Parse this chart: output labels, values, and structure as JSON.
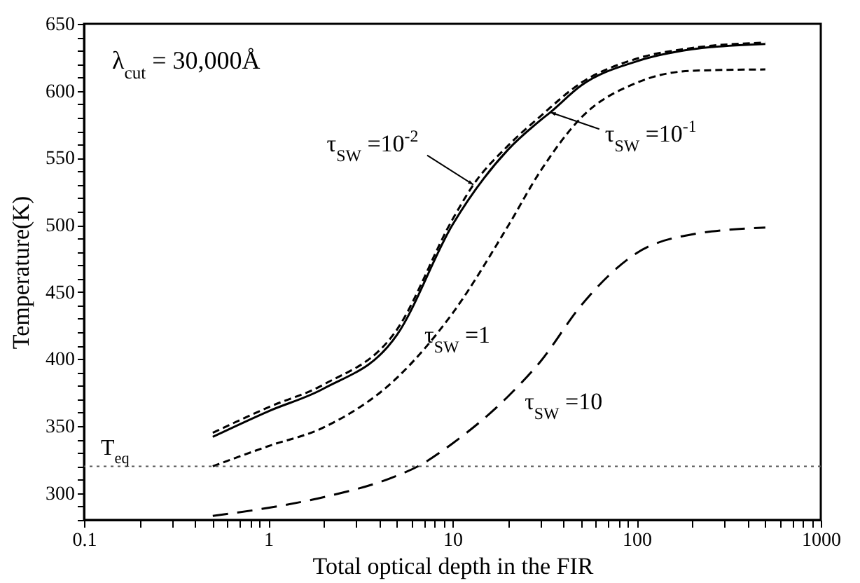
{
  "chart_data": {
    "type": "line",
    "xlabel": "Total optical depth in the FIR",
    "ylabel": "Temperature(K)",
    "log": "x",
    "grid": false,
    "marker": "none",
    "xlim": [
      0.1,
      1000
    ],
    "ylim": [
      280,
      650
    ],
    "xticks": [
      0.1,
      {
        "value": 0.2,
        "label": null
      },
      {
        "value": 0.3,
        "label": null
      },
      {
        "value": 0.4,
        "label": null
      },
      {
        "value": 0.5,
        "label": null
      },
      {
        "value": 0.6,
        "label": null
      },
      {
        "value": 0.7,
        "label": null
      },
      {
        "value": 0.8,
        "label": null
      },
      {
        "value": 0.9,
        "label": null
      },
      1,
      {
        "value": 2,
        "label": null
      },
      {
        "value": 3,
        "label": null
      },
      {
        "value": 4,
        "label": null
      },
      {
        "value": 5,
        "label": null
      },
      {
        "value": 6,
        "label": null
      },
      {
        "value": 7,
        "label": null
      },
      {
        "value": 8,
        "label": null
      },
      {
        "value": 9,
        "label": null
      },
      10,
      {
        "value": 20,
        "label": null
      },
      {
        "value": 30,
        "label": null
      },
      {
        "value": 40,
        "label": null
      },
      {
        "value": 50,
        "label": null
      },
      {
        "value": 60,
        "label": null
      },
      {
        "value": 70,
        "label": null
      },
      {
        "value": 80,
        "label": null
      },
      {
        "value": 90,
        "label": null
      },
      100,
      {
        "value": 200,
        "label": null
      },
      {
        "value": 300,
        "label": null
      },
      {
        "value": 400,
        "label": null
      },
      {
        "value": 500,
        "label": null
      },
      {
        "value": 600,
        "label": null
      },
      {
        "value": 700,
        "label": null
      },
      {
        "value": 800,
        "label": null
      },
      {
        "value": 900,
        "label": null
      },
      1000
    ],
    "yticks": [
      {
        "value": 280,
        "label": null
      },
      {
        "value": 290,
        "label": null
      },
      300,
      {
        "value": 310,
        "label": null
      },
      {
        "value": 320,
        "label": null
      },
      {
        "value": 330,
        "label": null
      },
      {
        "value": 340,
        "label": null
      },
      350,
      {
        "value": 360,
        "label": null
      },
      {
        "value": 370,
        "label": null
      },
      {
        "value": 380,
        "label": null
      },
      {
        "value": 390,
        "label": null
      },
      400,
      {
        "value": 410,
        "label": null
      },
      {
        "value": 420,
        "label": null
      },
      {
        "value": 430,
        "label": null
      },
      {
        "value": 440,
        "label": null
      },
      450,
      {
        "value": 460,
        "label": null
      },
      {
        "value": 470,
        "label": null
      },
      {
        "value": 480,
        "label": null
      },
      {
        "value": 490,
        "label": null
      },
      500,
      {
        "value": 510,
        "label": null
      },
      {
        "value": 520,
        "label": null
      },
      {
        "value": 530,
        "label": null
      },
      {
        "value": 540,
        "label": null
      },
      550,
      {
        "value": 560,
        "label": null
      },
      {
        "value": 570,
        "label": null
      },
      {
        "value": 580,
        "label": null
      },
      {
        "value": 590,
        "label": null
      },
      600,
      {
        "value": 610,
        "label": null
      },
      {
        "value": 620,
        "label": null
      },
      {
        "value": 630,
        "label": null
      },
      {
        "value": 640,
        "label": null
      },
      650
    ],
    "series": [
      {
        "name": "τ$_{SW}$ =10$^{-2}$",
        "color": "#000000",
        "line_style": "dashed",
        "x": [
          0.5,
          1,
          2,
          5,
          10,
          13,
          20,
          30,
          50,
          100,
          200,
          500
        ],
        "values": [
          345,
          364,
          381,
          422,
          504,
          530,
          559,
          581,
          606,
          624,
          632,
          636
        ]
      },
      {
        "name": "τ$_{SW}$ =10$^{-1}$",
        "color": "#000000",
        "line_style": "solid",
        "x": [
          0.5,
          1,
          2,
          5,
          10,
          20,
          30,
          34,
          50,
          100,
          200,
          500
        ],
        "values": [
          342,
          361,
          378,
          418,
          500,
          556,
          578,
          584,
          604,
          622,
          631,
          635
        ]
      },
      {
        "name": "τ$_{SW}$ =1",
        "color": "#000000",
        "line_style": "dashed",
        "x": [
          0.5,
          1,
          2,
          5,
          10,
          20,
          30,
          50,
          100,
          200,
          500
        ],
        "values": [
          320,
          335,
          349,
          386,
          434,
          499,
          540,
          580,
          606,
          615,
          616
        ]
      },
      {
        "name": "τ$_{SW}$ =10",
        "color": "#000000",
        "line_style": "dashed",
        "x": [
          0.5,
          1,
          2,
          5,
          6.5,
          10,
          20,
          30,
          50,
          100,
          200,
          500
        ],
        "values": [
          283,
          289,
          297,
          313,
          320,
          337,
          372,
          398,
          440,
          479,
          493,
          498
        ]
      }
    ],
    "ref_lines": [
      {
        "axis": "y",
        "value": 320,
        "label": "T$_{eq}$",
        "color": "#555555",
        "line_style": "dotted"
      }
    ],
    "annotations": [
      "λ$_{cut}$ = 30,000Å"
    ]
  }
}
